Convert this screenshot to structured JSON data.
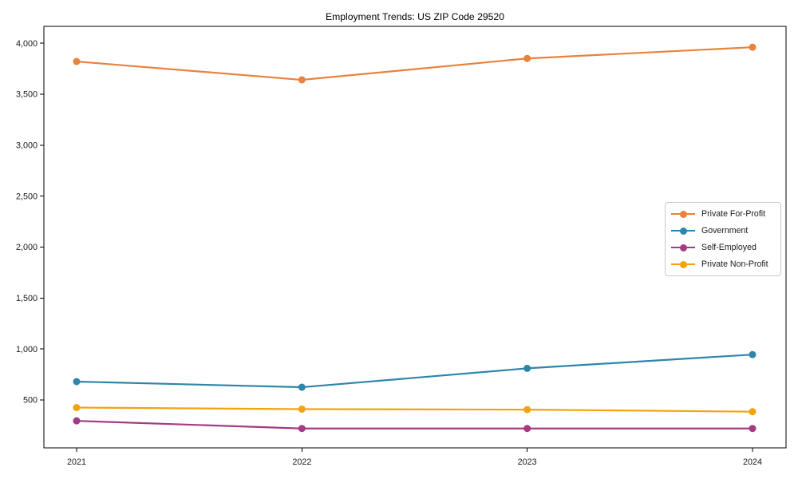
{
  "title": "Employment Trends: US ZIP Code 29520",
  "chart_data": {
    "type": "line",
    "title": "Employment Trends: US ZIP Code 29520",
    "xlabel": "",
    "ylabel": "",
    "x": [
      2021,
      2022,
      2023,
      2024
    ],
    "xtick_labels": [
      "2021",
      "2022",
      "2023",
      "2024"
    ],
    "ytick_values": [
      500,
      1000,
      1500,
      2000,
      2500,
      3000,
      3500,
      4000
    ],
    "ytick_labels": [
      "500",
      "1,000",
      "1,500",
      "2,000",
      "2,500",
      "3,000",
      "3,500",
      "4,000"
    ],
    "ylim": [
      30,
      4165
    ],
    "grid": false,
    "legend_position": "center-right",
    "frame_color": "#000000",
    "series": [
      {
        "name": "Private For-Profit",
        "color": "#E8823D",
        "values": [
          3820,
          3640,
          3850,
          3960
        ]
      },
      {
        "name": "Government",
        "color": "#2E86AB",
        "values": [
          680,
          625,
          810,
          945
        ]
      },
      {
        "name": "Self-Employed",
        "color": "#A43B84",
        "values": [
          295,
          220,
          220,
          220
        ]
      },
      {
        "name": "Private Non-Profit",
        "color": "#F2A30F",
        "values": [
          425,
          410,
          405,
          385
        ]
      }
    ]
  }
}
